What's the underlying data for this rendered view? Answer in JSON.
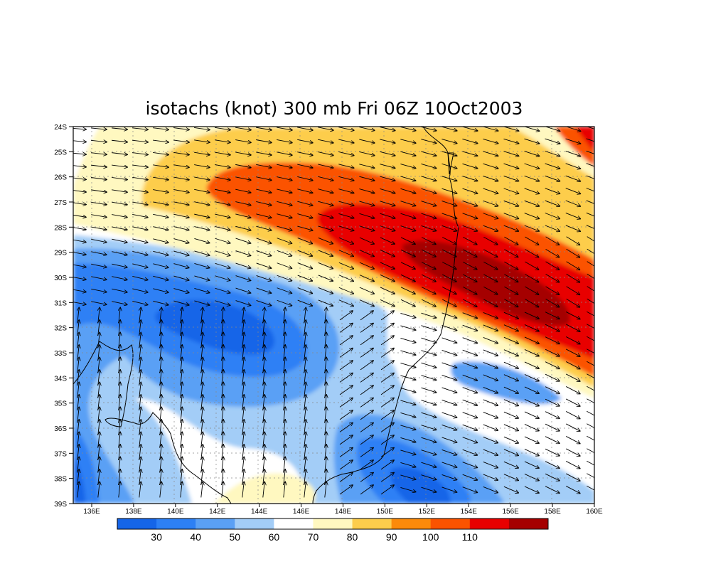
{
  "title": "isotachs (knot) 300 mb Fri 06Z 10Oct2003",
  "map": {
    "lat_labels": [
      "24S",
      "25S",
      "26S",
      "27S",
      "28S",
      "29S",
      "30S",
      "31S",
      "32S",
      "33S",
      "34S",
      "35S",
      "36S",
      "37S",
      "38S",
      "39S"
    ],
    "lon_labels": [
      "136E",
      "138E",
      "140E",
      "142E",
      "144E",
      "146E",
      "148E",
      "150E",
      "152E",
      "154E",
      "156E",
      "158E",
      "160E"
    ]
  },
  "colorbar": {
    "colors": [
      "#1565e8",
      "#2d80f5",
      "#5aa0f5",
      "#a3cdf7",
      "#ffffff",
      "#fff8c0",
      "#fdcd4c",
      "#fc8a0a",
      "#fb5300",
      "#e80000",
      "#a50000"
    ],
    "labels": [
      "30",
      "40",
      "50",
      "60",
      "70",
      "80",
      "90",
      "100",
      "110"
    ]
  }
}
